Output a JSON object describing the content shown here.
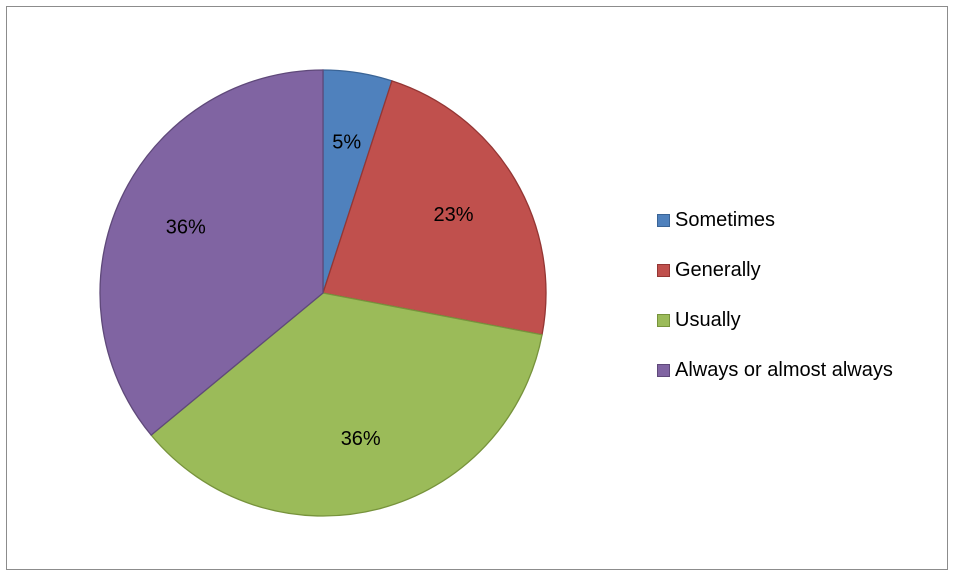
{
  "chart_data": {
    "type": "pie",
    "categories": [
      "Sometimes",
      "Generally",
      "Usually",
      "Always or almost always"
    ],
    "values": [
      5,
      23,
      36,
      36
    ],
    "data_labels": [
      "5%",
      "23%",
      "36%",
      "36%"
    ],
    "colors": [
      "#4F81BD",
      "#C0504D",
      "#9BBB59",
      "#8064A2"
    ],
    "edge_colors": [
      "#3A6496",
      "#943634",
      "#77933C",
      "#5F497A"
    ],
    "legend_position": "right",
    "start_angle_deg": 0,
    "direction": "clockwise"
  }
}
